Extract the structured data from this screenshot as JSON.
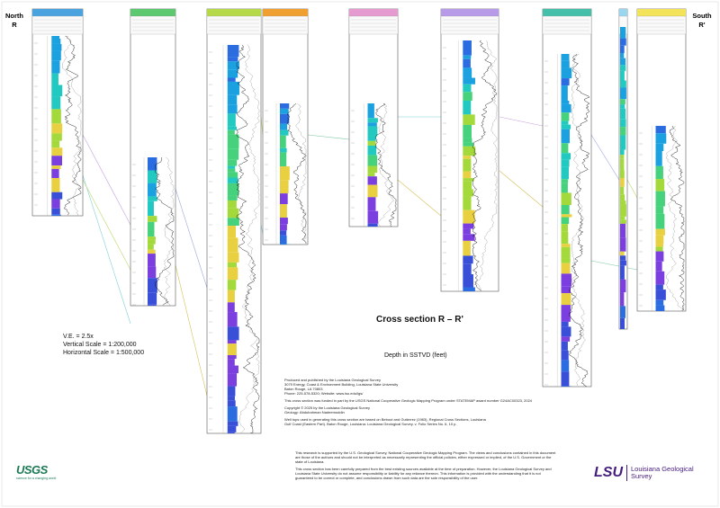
{
  "header": {
    "north": "North",
    "north_label": "R",
    "south": "South",
    "south_label": "R'"
  },
  "title": "Cross section R – R'",
  "depth_note": "Depth in SSTVD (feet)",
  "scales": [
    "V.E. = 2.5x",
    "Vertical Scale = 1:200,000",
    "Horizontal Scale = 1:500,000"
  ],
  "credits": [
    "Produced and published by the Louisiana Geological Survey",
    "3079 Energy, Coast & Environment Building, Louisiana State University",
    "Baton Rouge, LA 70803",
    "Phone: 225-578-5320; Website: www.lsu.edu/lgs/",
    "This cross section was funded in part by the USGS National Cooperative Geologic Mapping Program under STATEMAP award number G24AC00323, 2024",
    "Copyright © 2025 by the Louisiana Geological Survey",
    "Geology: Abdulrahman Nadeemuddin",
    "Well tops used in generating this cross section are based on Bebout and Gutierrez (1983), Regional Cross Sections, Louisiana Gulf Coast (Eastern Part). Baton Rouge, Louisiana: Louisiana Geological Survey. v. Folio Series No. 6, 10 p."
  ],
  "disclaimer": [
    "This research is supported by the U.S. Geological Survey, National Cooperative Geologic Mapping Program. The views and conclusions contained in this document are those of the authors and should not be interpreted as necessarily representing the official policies, either expressed or implied, of the U.S. Government or the state of Louisiana.",
    "This cross section has been carefully prepared from the best existing sources available at the time of preparation. However, the Louisiana Geological Survey and Louisiana State University do not assume responsibility or liability for any reliance thereon. This information is provided with the understanding that it is not guaranteed to be correct or complete, and conclusions drawn from such data are the sole responsibility of the user."
  ],
  "logos": {
    "usgs": "USGS",
    "usgs_tagline": "science for a changing world",
    "lsu": "LSU",
    "lgs": "Louisiana Geological Survey"
  }
}
